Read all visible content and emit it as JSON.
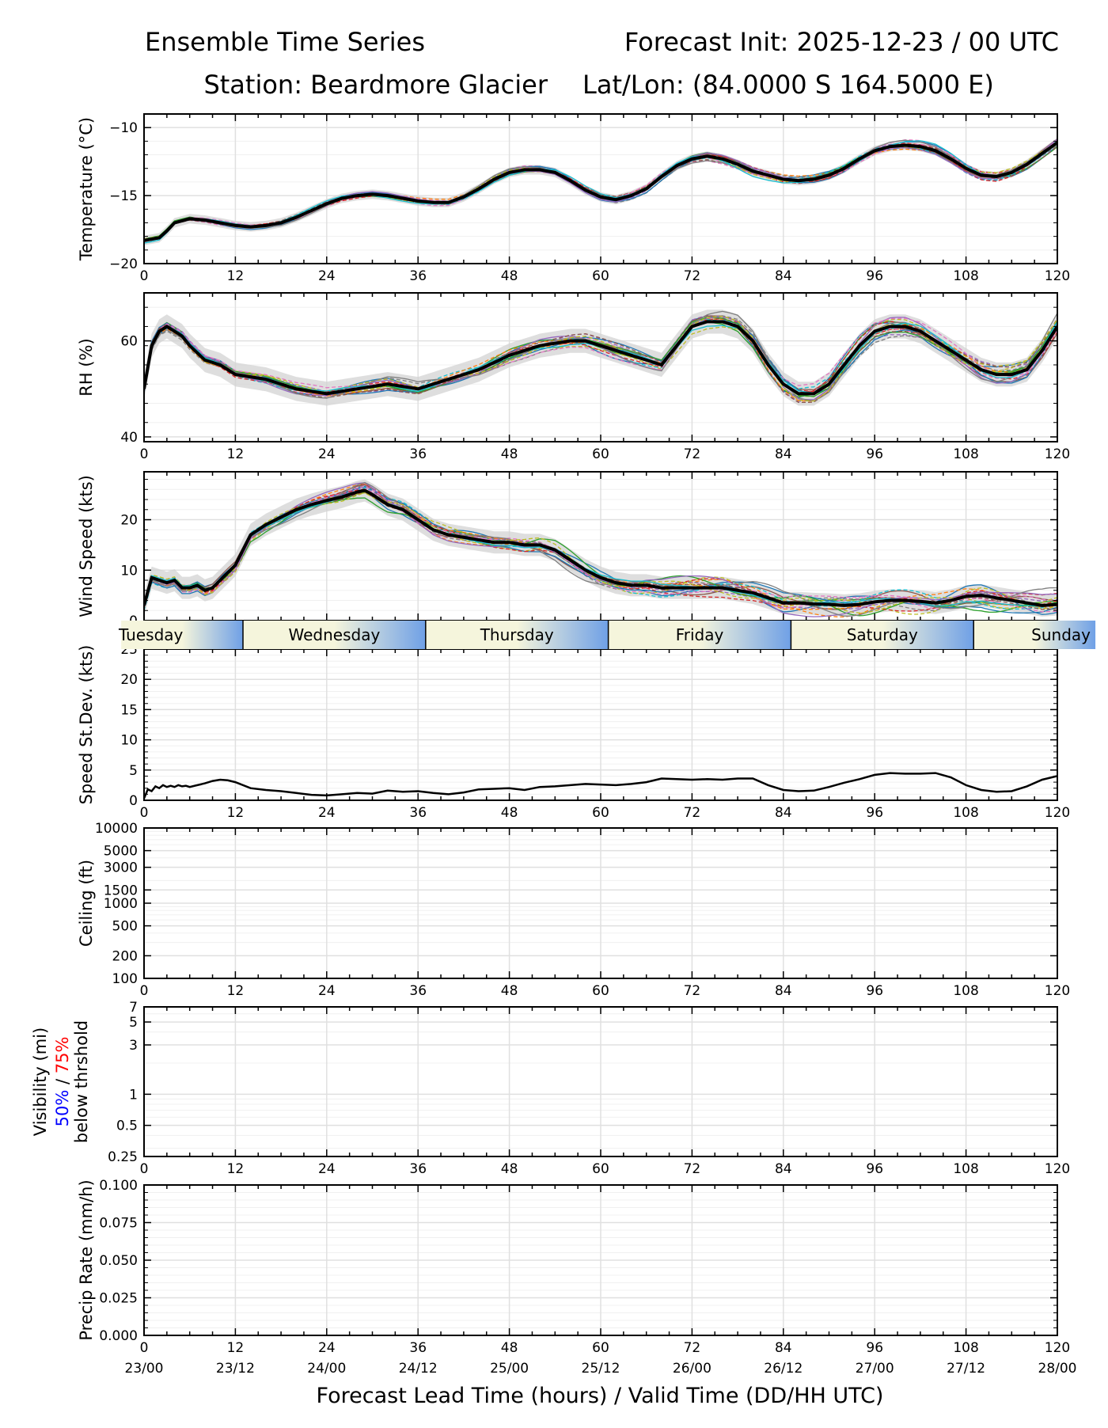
{
  "header": {
    "title_left": "Ensemble Time Series",
    "title_right": "Forecast Init: 2025-12-23 / 00 UTC",
    "station": "Station: Beardmore Glacier",
    "latlon": "Lat/Lon: (84.0000 S 164.5000 E)"
  },
  "colors": {
    "members": [
      "#1f77b4",
      "#ff7f0e",
      "#2ca02c",
      "#d62728",
      "#9467bd",
      "#8c564b",
      "#e377c2",
      "#7f7f7f",
      "#bcbd22",
      "#17becf"
    ],
    "mean": "#000000",
    "spread": "#d3d3d3",
    "grid": "#e0e0e0",
    "day_light": "#f5f5dc",
    "day_dark": "#6fa0e6",
    "vis_50": "#0000ff",
    "vis_75": "#ff0000"
  },
  "chart_data": [
    {
      "id": "temperature",
      "type": "line",
      "ylabel": "Temperature (°C)",
      "xlim": [
        0,
        120
      ],
      "ylim": [
        -20,
        -9
      ],
      "yticks": [
        -20,
        -15,
        -10
      ],
      "ytick_labels": [
        "−20",
        "−15",
        "−10"
      ],
      "x_hours": [
        0,
        1,
        2,
        3,
        4,
        6,
        8,
        10,
        12,
        14,
        16,
        18,
        20,
        22,
        24,
        26,
        28,
        30,
        32,
        34,
        36,
        38,
        40,
        42,
        44,
        46,
        48,
        50,
        52,
        54,
        56,
        58,
        60,
        62,
        64,
        66,
        68,
        70,
        72,
        74,
        76,
        78,
        80,
        82,
        84,
        86,
        88,
        90,
        92,
        94,
        96,
        98,
        100,
        102,
        104,
        106,
        108,
        110,
        112,
        114,
        116,
        118,
        120
      ],
      "ensemble_mean": [
        -18.3,
        -18.2,
        -18.1,
        -17.6,
        -17.0,
        -16.7,
        -16.8,
        -17.0,
        -17.2,
        -17.3,
        -17.2,
        -17.0,
        -16.6,
        -16.1,
        -15.6,
        -15.2,
        -15.0,
        -14.9,
        -15.0,
        -15.2,
        -15.4,
        -15.5,
        -15.5,
        -15.1,
        -14.5,
        -13.8,
        -13.3,
        -13.1,
        -13.1,
        -13.3,
        -13.9,
        -14.6,
        -15.1,
        -15.3,
        -15.0,
        -14.5,
        -13.6,
        -12.8,
        -12.3,
        -12.1,
        -12.3,
        -12.7,
        -13.2,
        -13.5,
        -13.8,
        -13.9,
        -13.8,
        -13.5,
        -13.0,
        -12.3,
        -11.7,
        -11.4,
        -11.3,
        -11.4,
        -11.7,
        -12.3,
        -13.0,
        -13.5,
        -13.6,
        -13.3,
        -12.7,
        -11.9,
        -11.1
      ],
      "spread_width": 0.35
    },
    {
      "id": "rh",
      "type": "line",
      "ylabel": "RH (%)",
      "xlim": [
        0,
        120
      ],
      "ylim": [
        39,
        70
      ],
      "yticks": [
        40,
        60
      ],
      "ytick_labels": [
        "40",
        "60"
      ],
      "x_hours": [
        0,
        1,
        2,
        3,
        4,
        5,
        6,
        8,
        10,
        12,
        16,
        20,
        24,
        28,
        32,
        36,
        40,
        44,
        48,
        52,
        56,
        58,
        60,
        64,
        66,
        68,
        70,
        72,
        74,
        76,
        78,
        80,
        82,
        84,
        86,
        88,
        90,
        92,
        94,
        96,
        98,
        100,
        102,
        104,
        106,
        108,
        110,
        112,
        114,
        116,
        118,
        120
      ],
      "ensemble_mean": [
        50,
        59,
        62,
        63,
        62,
        61,
        59,
        56,
        55,
        53,
        52,
        50,
        49,
        50,
        51,
        50,
        52,
        54,
        57,
        59,
        60,
        60,
        59,
        57,
        56,
        55,
        59,
        63,
        64,
        64,
        63,
        60,
        55,
        51,
        49,
        49,
        51,
        55,
        59,
        62,
        63,
        63,
        62,
        60,
        58,
        56,
        54,
        53,
        53,
        54,
        58,
        63
      ],
      "spread_width": 2.5
    },
    {
      "id": "wind_speed",
      "type": "line",
      "ylabel": "Wind Speed (kts)",
      "xlim": [
        0,
        120
      ],
      "ylim": [
        0,
        29.5
      ],
      "yticks": [
        0,
        10,
        20
      ],
      "ytick_labels": [
        "0",
        "10",
        "20"
      ],
      "x_hours": [
        0,
        1,
        2,
        3,
        4,
        5,
        6,
        7,
        8,
        9,
        10,
        12,
        14,
        16,
        18,
        20,
        22,
        24,
        26,
        28,
        29,
        30,
        32,
        34,
        36,
        38,
        40,
        42,
        44,
        46,
        48,
        50,
        52,
        54,
        56,
        58,
        60,
        62,
        64,
        66,
        68,
        70,
        72,
        74,
        76,
        78,
        80,
        82,
        84,
        86,
        88,
        90,
        92,
        94,
        96,
        98,
        100,
        102,
        104,
        106,
        108,
        110,
        112,
        114,
        116,
        118,
        120
      ],
      "ensemble_mean": [
        3,
        8.5,
        8,
        7.5,
        8,
        6.5,
        6.5,
        7,
        6,
        6.5,
        8,
        11,
        17,
        19,
        20.5,
        22,
        23,
        23.8,
        24.5,
        25.5,
        25.8,
        25,
        23,
        22,
        20,
        18,
        17,
        16.5,
        16,
        15.5,
        15.5,
        15,
        15,
        14,
        12,
        10,
        8.5,
        7.5,
        7,
        7,
        6.5,
        6.5,
        6.5,
        6.5,
        6.5,
        6,
        5.5,
        4.5,
        3.5,
        3.5,
        3.3,
        3.2,
        3,
        3.2,
        3.7,
        4,
        4,
        3.8,
        3.5,
        4,
        4.8,
        5,
        4.5,
        4,
        3.5,
        3,
        3.2
      ],
      "spread_width": 2.2
    },
    {
      "id": "speed_stdev",
      "type": "line",
      "ylabel": "Speed St.Dev. (kts)",
      "xlim": [
        0,
        120
      ],
      "ylim": [
        0,
        25
      ],
      "yticks": [
        0,
        5,
        10,
        15,
        20,
        25
      ],
      "ytick_labels": [
        "0",
        "5",
        "10",
        "15",
        "20",
        "25"
      ],
      "x_hours": [
        0,
        0.5,
        1,
        1.5,
        2,
        2.5,
        3,
        3.5,
        4,
        4.5,
        5,
        5.5,
        6,
        7,
        8,
        9,
        10,
        11,
        12,
        14,
        16,
        18,
        20,
        22,
        24,
        26,
        28,
        30,
        32,
        34,
        36,
        38,
        40,
        42,
        44,
        46,
        48,
        50,
        52,
        54,
        56,
        58,
        60,
        62,
        64,
        66,
        68,
        70,
        72,
        74,
        76,
        78,
        80,
        82,
        84,
        86,
        88,
        90,
        92,
        94,
        96,
        98,
        100,
        102,
        104,
        106,
        108,
        110,
        112,
        114,
        116,
        118,
        120
      ],
      "values": [
        0.3,
        1.8,
        1.5,
        2.3,
        2.0,
        2.5,
        2.2,
        2.4,
        2.2,
        2.5,
        2.3,
        2.4,
        2.2,
        2.5,
        2.8,
        3.2,
        3.4,
        3.3,
        3.0,
        2.0,
        1.7,
        1.5,
        1.2,
        0.9,
        0.8,
        1.0,
        1.2,
        1.1,
        1.6,
        1.4,
        1.5,
        1.2,
        1.0,
        1.3,
        1.8,
        1.9,
        2.0,
        1.7,
        2.2,
        2.3,
        2.5,
        2.7,
        2.6,
        2.5,
        2.7,
        3.0,
        3.6,
        3.5,
        3.4,
        3.5,
        3.4,
        3.6,
        3.6,
        2.5,
        1.7,
        1.5,
        1.6,
        2.2,
        2.9,
        3.5,
        4.2,
        4.5,
        4.4,
        4.4,
        4.5,
        3.8,
        2.5,
        1.7,
        1.4,
        1.5,
        2.3,
        3.4,
        4.0
      ]
    },
    {
      "id": "ceiling",
      "type": "line",
      "ylabel": "Ceiling (ft)",
      "yscale": "log",
      "xlim": [
        0,
        120
      ],
      "ylim": [
        100,
        10000
      ],
      "yticks": [
        100,
        200,
        500,
        1000,
        1500,
        3000,
        5000,
        10000
      ],
      "ytick_labels": [
        "100",
        "200",
        "500",
        "1000",
        "1500",
        "3000",
        "5000",
        "10000"
      ],
      "series": []
    },
    {
      "id": "visibility",
      "type": "line",
      "ylabel_line1": "Visibility (mi)",
      "ylabel_50": "50%",
      "ylabel_sep": " / ",
      "ylabel_75": "75%",
      "ylabel_line3": "below thrshold",
      "yscale": "log",
      "xlim": [
        0,
        120
      ],
      "ylim": [
        0.25,
        7
      ],
      "yticks": [
        0.25,
        0.5,
        1,
        3,
        5,
        7
      ],
      "ytick_labels": [
        "0.25",
        "0.5",
        "1",
        "3",
        "5",
        "7"
      ],
      "series": []
    },
    {
      "id": "precip_rate",
      "type": "line",
      "ylabel": "Precip Rate (mm/h)",
      "xlim": [
        0,
        120
      ],
      "ylim": [
        0,
        0.1
      ],
      "yticks": [
        0,
        0.025,
        0.05,
        0.075,
        0.1
      ],
      "ytick_labels": [
        "0.000",
        "0.025",
        "0.050",
        "0.075",
        "0.100"
      ],
      "series": []
    }
  ],
  "x_axis": {
    "ticks": [
      0,
      12,
      24,
      36,
      48,
      60,
      72,
      84,
      96,
      108,
      120
    ],
    "tick_labels": [
      "0",
      "12",
      "24",
      "36",
      "48",
      "60",
      "72",
      "84",
      "96",
      "108",
      "120"
    ],
    "valid_time_labels": [
      "23/00",
      "23/12",
      "24/00",
      "24/12",
      "25/00",
      "25/12",
      "26/00",
      "26/12",
      "27/00",
      "27/12",
      "28/00"
    ],
    "label": "Forecast Lead Time (hours) / Valid Time (DD/HH UTC)"
  },
  "day_band": {
    "days": [
      {
        "name": "Tuesday",
        "start": -3,
        "end": 13
      },
      {
        "name": "Wednesday",
        "start": 13,
        "end": 37
      },
      {
        "name": "Thursday",
        "start": 37,
        "end": 61
      },
      {
        "name": "Friday",
        "start": 61,
        "end": 85
      },
      {
        "name": "Saturday",
        "start": 85,
        "end": 109
      },
      {
        "name": "Sunday",
        "start": 109,
        "end": 125
      }
    ]
  }
}
